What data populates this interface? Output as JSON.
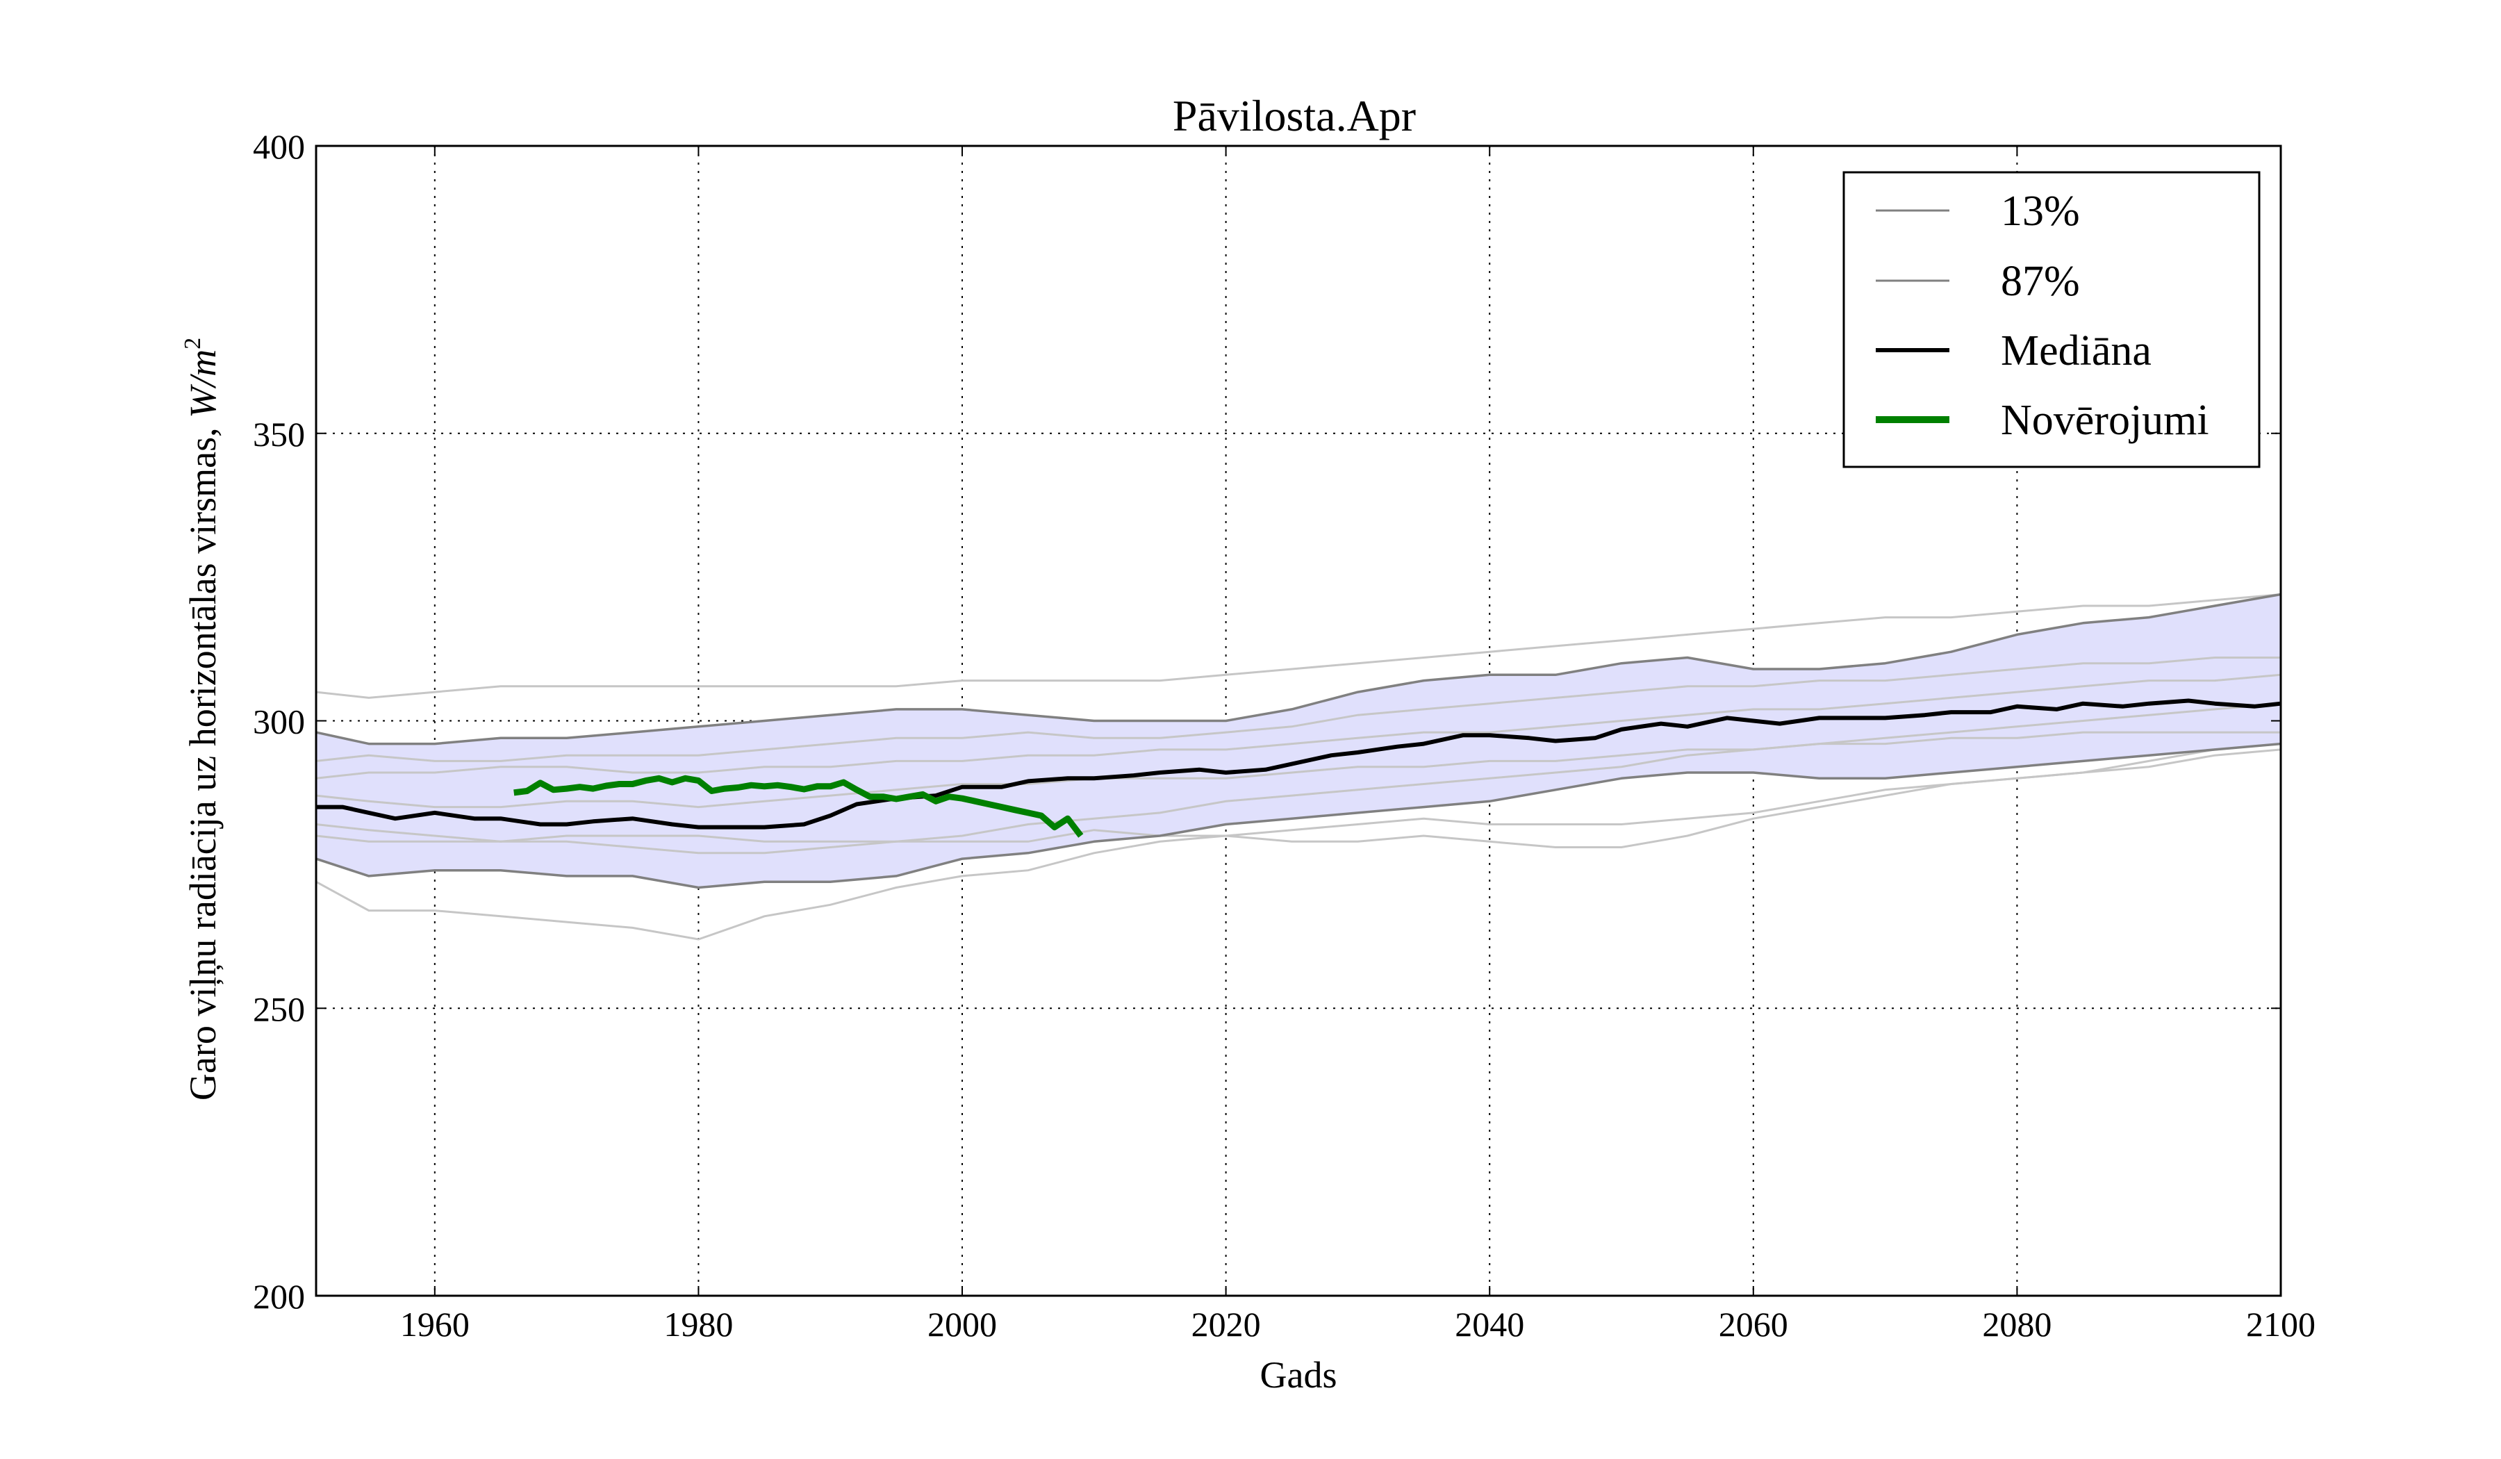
{
  "chart_data": {
    "type": "line",
    "title": "Pāvilosta.Apr",
    "xlabel": "Gads",
    "ylabel": "Garo viļņu radiācija uz horizontālas virsmas, ",
    "ylabel_unit": "W/m",
    "ylabel_unit_sup": "2",
    "xlim": [
      1951,
      2100
    ],
    "ylim": [
      200,
      400
    ],
    "xticks": [
      1960,
      1980,
      2000,
      2020,
      2040,
      2060,
      2080,
      2100
    ],
    "yticks": [
      200,
      250,
      300,
      350,
      400
    ],
    "grid": true,
    "legend": {
      "position": "top-right",
      "entries": [
        "13%",
        "87%",
        "Mediāna",
        "Novērojumi"
      ]
    },
    "colors": {
      "band_fill": "#e0e0fc",
      "percentile": "#808080",
      "ensemble": "#c6c6c6",
      "median": "#000000",
      "observations": "#008000"
    },
    "series": [
      {
        "name": "13%",
        "role": "percentile",
        "x": [
          1951,
          1955,
          1960,
          1965,
          1970,
          1975,
          1980,
          1985,
          1990,
          1995,
          2000,
          2005,
          2010,
          2015,
          2020,
          2025,
          2030,
          2035,
          2040,
          2045,
          2050,
          2055,
          2060,
          2065,
          2070,
          2075,
          2080,
          2085,
          2090,
          2095,
          2100
        ],
        "y": [
          276,
          273,
          274,
          274,
          273,
          273,
          271,
          272,
          272,
          273,
          276,
          277,
          279,
          280,
          282,
          283,
          284,
          285,
          286,
          288,
          290,
          291,
          291,
          290,
          290,
          291,
          292,
          293,
          294,
          295,
          296
        ]
      },
      {
        "name": "87%",
        "role": "percentile",
        "x": [
          1951,
          1955,
          1960,
          1965,
          1970,
          1975,
          1980,
          1985,
          1990,
          1995,
          2000,
          2005,
          2010,
          2015,
          2020,
          2025,
          2030,
          2035,
          2040,
          2045,
          2050,
          2055,
          2060,
          2065,
          2070,
          2075,
          2080,
          2085,
          2090,
          2095,
          2100
        ],
        "y": [
          298,
          296,
          296,
          297,
          297,
          298,
          299,
          300,
          301,
          302,
          302,
          301,
          300,
          300,
          300,
          302,
          305,
          307,
          308,
          308,
          310,
          311,
          309,
          309,
          310,
          312,
          315,
          317,
          318,
          320,
          322
        ]
      },
      {
        "name": "Mediāna",
        "role": "median",
        "x": [
          1951,
          1953,
          1955,
          1957,
          1960,
          1963,
          1965,
          1968,
          1970,
          1972,
          1975,
          1978,
          1980,
          1983,
          1985,
          1988,
          1990,
          1992,
          1995,
          1998,
          2000,
          2003,
          2005,
          2008,
          2010,
          2013,
          2015,
          2018,
          2020,
          2023,
          2025,
          2028,
          2030,
          2033,
          2035,
          2038,
          2040,
          2043,
          2045,
          2048,
          2050,
          2053,
          2055,
          2058,
          2060,
          2062,
          2065,
          2068,
          2070,
          2073,
          2075,
          2078,
          2080,
          2083,
          2085,
          2088,
          2090,
          2093,
          2095,
          2098,
          2100
        ],
        "y": [
          285,
          285,
          284,
          283,
          284,
          283,
          283,
          282,
          282,
          282.5,
          283,
          282,
          281.5,
          281.5,
          281.5,
          282,
          283.5,
          285.5,
          286.5,
          287,
          288.5,
          288.5,
          289.5,
          290,
          290,
          290.5,
          291,
          291.5,
          291,
          291.5,
          292.5,
          294,
          294.5,
          295.5,
          296,
          297.5,
          297.5,
          297,
          296.5,
          297,
          298.5,
          299.5,
          299,
          300.5,
          300,
          299.5,
          300.5,
          300.5,
          300.5,
          301,
          301.5,
          301.5,
          302.5,
          302,
          303,
          302.5,
          303,
          303.5,
          303,
          302.5,
          303
        ]
      },
      {
        "name": "Novērojumi",
        "role": "observations",
        "x": [
          1966,
          1967,
          1968,
          1969,
          1970,
          1971,
          1972,
          1973,
          1974,
          1975,
          1976,
          1977,
          1978,
          1979,
          1980,
          1981,
          1982,
          1983,
          1984,
          1985,
          1986,
          1987,
          1988,
          1989,
          1990,
          1991,
          1992,
          1993,
          1994,
          1995,
          1996,
          1997,
          1998,
          1999,
          2000,
          2001,
          2002,
          2003,
          2004,
          2005,
          2006,
          2007,
          2008,
          2009
        ],
        "y": [
          287.5,
          287.8,
          289.2,
          288,
          288.2,
          288.5,
          288.2,
          288.7,
          289,
          289,
          289.6,
          290,
          289.3,
          290,
          289.6,
          287.8,
          288.2,
          288.4,
          288.8,
          288.6,
          288.8,
          288.5,
          288.1,
          288.6,
          288.6,
          289.3,
          288,
          286.8,
          286.8,
          286.4,
          286.8,
          287.2,
          286,
          286.8,
          286.5,
          286,
          285.5,
          285,
          284.5,
          284,
          283.5,
          281.5,
          283,
          280
        ]
      }
    ],
    "ensemble_members": [
      {
        "x": [
          1951,
          1955,
          1960,
          1965,
          1970,
          1975,
          1980,
          1985,
          1990,
          1995,
          2000,
          2005,
          2010,
          2015,
          2020,
          2025,
          2030,
          2035,
          2040,
          2045,
          2050,
          2055,
          2060,
          2065,
          2070,
          2075,
          2080,
          2085,
          2090,
          2095,
          2100
        ],
        "y": [
          305,
          304,
          305,
          306,
          306,
          306,
          306,
          306,
          306,
          306,
          307,
          307,
          307,
          307,
          308,
          309,
          310,
          311,
          312,
          313,
          314,
          315,
          316,
          317,
          318,
          318,
          319,
          320,
          320,
          321,
          322
        ]
      },
      {
        "x": [
          1951,
          1955,
          1960,
          1965,
          1970,
          1975,
          1980,
          1985,
          1990,
          1995,
          2000,
          2005,
          2010,
          2015,
          2020,
          2025,
          2030,
          2035,
          2040,
          2045,
          2050,
          2055,
          2060,
          2065,
          2070,
          2075,
          2080,
          2085,
          2090,
          2095,
          2100
        ],
        "y": [
          272,
          267,
          267,
          266,
          265,
          264,
          262,
          266,
          268,
          271,
          273,
          274,
          277,
          279,
          280,
          281,
          282,
          283,
          282,
          282,
          282,
          283,
          284,
          286,
          288,
          289,
          290,
          291,
          292,
          294,
          295
        ]
      },
      {
        "x": [
          1951,
          1955,
          1960,
          1965,
          1970,
          1975,
          1980,
          1985,
          1990,
          1995,
          2000,
          2005,
          2010,
          2015,
          2020,
          2025,
          2030,
          2035,
          2040,
          2045,
          2050,
          2055,
          2060,
          2065,
          2070,
          2075,
          2080,
          2085,
          2090,
          2095,
          2100
        ],
        "y": [
          280,
          279,
          279,
          279,
          280,
          280,
          280,
          279,
          279,
          279,
          279,
          279,
          281,
          280,
          280,
          279,
          279,
          280,
          279,
          278,
          278,
          280,
          283,
          285,
          287,
          289,
          290,
          291,
          293,
          295,
          296
        ]
      },
      {
        "x": [
          1951,
          1955,
          1960,
          1965,
          1970,
          1975,
          1980,
          1985,
          1990,
          1995,
          2000,
          2005,
          2010,
          2015,
          2020,
          2025,
          2030,
          2035,
          2040,
          2045,
          2050,
          2055,
          2060,
          2065,
          2070,
          2075,
          2080,
          2085,
          2090,
          2095,
          2100
        ],
        "y": [
          293,
          294,
          293,
          293,
          294,
          294,
          294,
          295,
          296,
          297,
          297,
          298,
          297,
          297,
          298,
          299,
          301,
          302,
          303,
          304,
          305,
          306,
          306,
          307,
          307,
          308,
          309,
          310,
          310,
          311,
          311
        ]
      },
      {
        "x": [
          1951,
          1955,
          1960,
          1965,
          1970,
          1975,
          1980,
          1985,
          1990,
          1995,
          2000,
          2005,
          2010,
          2015,
          2020,
          2025,
          2030,
          2035,
          2040,
          2045,
          2050,
          2055,
          2060,
          2065,
          2070,
          2075,
          2080,
          2085,
          2090,
          2095,
          2100
        ],
        "y": [
          287,
          286,
          285,
          285,
          286,
          286,
          285,
          286,
          287,
          288,
          289,
          289,
          290,
          290,
          290,
          291,
          292,
          292,
          293,
          293,
          294,
          295,
          295,
          296,
          296,
          297,
          297,
          298,
          298,
          298,
          298
        ]
      },
      {
        "x": [
          1951,
          1955,
          1960,
          1965,
          1970,
          1975,
          1980,
          1985,
          1990,
          1995,
          2000,
          2005,
          2010,
          2015,
          2020,
          2025,
          2030,
          2035,
          2040,
          2045,
          2050,
          2055,
          2060,
          2065,
          2070,
          2075,
          2080,
          2085,
          2090,
          2095,
          2100
        ],
        "y": [
          282,
          281,
          280,
          279,
          279,
          278,
          277,
          277,
          278,
          279,
          280,
          282,
          283,
          284,
          286,
          287,
          288,
          289,
          290,
          291,
          292,
          294,
          295,
          296,
          297,
          298,
          299,
          300,
          301,
          302,
          303
        ]
      },
      {
        "x": [
          1951,
          1955,
          1960,
          1965,
          1970,
          1975,
          1980,
          1985,
          1990,
          1995,
          2000,
          2005,
          2010,
          2015,
          2020,
          2025,
          2030,
          2035,
          2040,
          2045,
          2050,
          2055,
          2060,
          2065,
          2070,
          2075,
          2080,
          2085,
          2090,
          2095,
          2100
        ],
        "y": [
          290,
          291,
          291,
          292,
          292,
          291,
          291,
          292,
          292,
          293,
          293,
          294,
          294,
          295,
          295,
          296,
          297,
          298,
          298,
          299,
          300,
          301,
          302,
          302,
          303,
          304,
          305,
          306,
          307,
          307,
          308
        ]
      }
    ]
  }
}
